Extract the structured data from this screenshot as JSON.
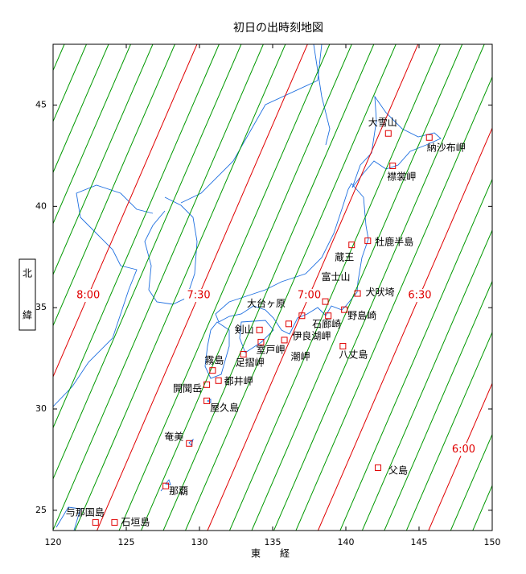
{
  "chart_data": {
    "type": "map",
    "title": "初日の出時刻地図",
    "x_label": "東　　経",
    "y_label": [
      "北",
      "緯"
    ],
    "xlim": [
      120,
      150
    ],
    "ylim": [
      24,
      48
    ],
    "xticks": [
      120,
      125,
      130,
      135,
      140,
      145,
      150
    ],
    "yticks": [
      25,
      30,
      35,
      40,
      45
    ],
    "contour_y": [
      24,
      48
    ],
    "contours": [
      {
        "x": [
          106.39,
          120.77
        ],
        "color": "#009900"
      },
      {
        "x": [
          107.9,
          122.28
        ],
        "color": "#009900"
      },
      {
        "x": [
          109.41,
          123.79
        ],
        "color": "#009900"
      },
      {
        "x": [
          110.92,
          125.3
        ],
        "color": "#009900"
      },
      {
        "x": [
          112.43,
          126.81
        ],
        "color": "#009900"
      },
      {
        "x": [
          113.94,
          128.32
        ],
        "color": "#009900"
      },
      {
        "x": [
          115.45,
          129.83
        ],
        "color": "#e00000",
        "label": "8:00"
      },
      {
        "x": [
          116.96,
          131.34
        ],
        "color": "#009900"
      },
      {
        "x": [
          118.47,
          132.85
        ],
        "color": "#009900"
      },
      {
        "x": [
          119.98,
          134.36
        ],
        "color": "#009900"
      },
      {
        "x": [
          121.49,
          135.87
        ],
        "color": "#009900"
      },
      {
        "x": [
          123.0,
          137.38
        ],
        "color": "#e00000",
        "label": "7:30"
      },
      {
        "x": [
          124.51,
          138.89
        ],
        "color": "#009900"
      },
      {
        "x": [
          126.02,
          140.4
        ],
        "color": "#009900"
      },
      {
        "x": [
          127.53,
          141.91
        ],
        "color": "#009900"
      },
      {
        "x": [
          129.04,
          143.42
        ],
        "color": "#009900"
      },
      {
        "x": [
          130.55,
          144.93
        ],
        "color": "#e00000",
        "label": "7:00"
      },
      {
        "x": [
          132.06,
          146.44
        ],
        "color": "#009900"
      },
      {
        "x": [
          133.57,
          147.95
        ],
        "color": "#009900"
      },
      {
        "x": [
          135.08,
          149.46
        ],
        "color": "#009900"
      },
      {
        "x": [
          136.59,
          150.97
        ],
        "color": "#009900"
      },
      {
        "x": [
          138.1,
          152.48
        ],
        "color": "#e00000",
        "label": "6:30"
      },
      {
        "x": [
          139.61,
          153.99
        ],
        "color": "#009900"
      },
      {
        "x": [
          141.12,
          155.5
        ],
        "color": "#009900"
      },
      {
        "x": [
          142.63,
          157.01
        ],
        "color": "#009900"
      },
      {
        "x": [
          144.14,
          158.52
        ],
        "color": "#009900"
      },
      {
        "x": [
          145.65,
          160.03
        ],
        "color": "#e00000",
        "label": "6:00"
      },
      {
        "x": [
          147.16,
          161.54
        ],
        "color": "#009900"
      },
      {
        "x": [
          148.67,
          163.05
        ],
        "color": "#009900"
      }
    ],
    "marker_color": "#e00000",
    "places": [
      {
        "name": "大雪山",
        "lon": 142.9,
        "lat": 43.6
      },
      {
        "name": "納沙布岬",
        "lon": 145.7,
        "lat": 43.4
      },
      {
        "name": "襟裳岬",
        "lon": 143.2,
        "lat": 42.0
      },
      {
        "name": "牡鹿半島",
        "lon": 141.5,
        "lat": 38.3
      },
      {
        "name": "蔵王",
        "lon": 140.4,
        "lat": 38.1
      },
      {
        "name": "富士山",
        "lon": 138.6,
        "lat": 35.3
      },
      {
        "name": "犬吠埼",
        "lon": 140.8,
        "lat": 35.7
      },
      {
        "name": "野島崎",
        "lon": 139.9,
        "lat": 34.9
      },
      {
        "name": "石廊崎",
        "lon": 138.8,
        "lat": 34.6
      },
      {
        "name": "伊良湖岬",
        "lon": 137.0,
        "lat": 34.6
      },
      {
        "name": "潮岬",
        "lon": 135.8,
        "lat": 33.4
      },
      {
        "name": "八丈島",
        "lon": 139.8,
        "lat": 33.1
      },
      {
        "name": "大台ヶ原",
        "lon": 136.1,
        "lat": 34.2
      },
      {
        "name": "剣山",
        "lon": 134.1,
        "lat": 33.9
      },
      {
        "name": "室戸岬",
        "lon": 134.2,
        "lat": 33.3
      },
      {
        "name": "足摺岬",
        "lon": 133.0,
        "lat": 32.7
      },
      {
        "name": "霧島",
        "lon": 130.9,
        "lat": 31.9
      },
      {
        "name": "都井岬",
        "lon": 131.3,
        "lat": 31.4
      },
      {
        "name": "開聞岳",
        "lon": 130.5,
        "lat": 31.2
      },
      {
        "name": "屋久島",
        "lon": 130.5,
        "lat": 30.4
      },
      {
        "name": "奄美",
        "lon": 129.3,
        "lat": 28.3
      },
      {
        "name": "那覇",
        "lon": 127.7,
        "lat": 26.2
      },
      {
        "name": "父島",
        "lon": 142.2,
        "lat": 27.1
      },
      {
        "name": "与那国島",
        "lon": 122.9,
        "lat": 24.4
      },
      {
        "name": "石垣島",
        "lon": 124.2,
        "lat": 24.4
      }
    ]
  }
}
